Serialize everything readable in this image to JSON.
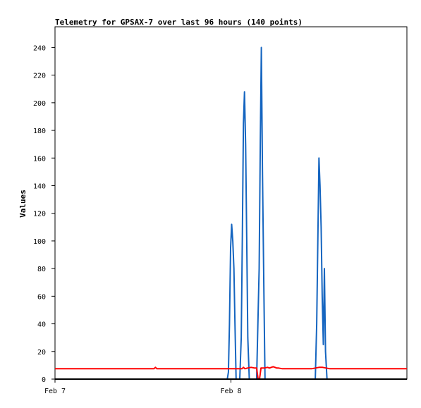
{
  "chart_data": {
    "type": "line",
    "title": "Telemetry for GPSAX-7 over last 96 hours (140 points)",
    "xlabel": "",
    "ylabel": "Values",
    "x_tick_labels": [
      "Feb 7",
      "Feb 8"
    ],
    "y_ticks": [
      0,
      20,
      40,
      60,
      80,
      100,
      120,
      140,
      160,
      180,
      200,
      220,
      240
    ],
    "xlim": [
      0,
      96
    ],
    "ylim": [
      0,
      255
    ],
    "grid": false,
    "legend": "none",
    "series": [
      {
        "color": "#1565c0",
        "x": [
          24.0,
          47.0,
          47.3,
          47.6,
          47.9,
          48.2,
          48.5,
          48.8,
          49.1,
          49.4,
          50.0,
          50.4,
          50.8,
          51.1,
          51.4,
          51.7,
          52.0,
          52.3,
          52.6,
          53.0,
          54.3,
          55.0,
          55.7,
          56.0,
          56.3,
          56.6,
          57.0,
          57.3,
          57.6,
          58.0,
          59.0,
          59.6,
          59.9,
          60.2,
          60.5,
          60.8,
          61.2,
          62.0,
          71.0,
          71.4,
          71.7,
          72.0,
          72.3,
          72.6,
          72.9,
          73.2,
          73.5,
          73.8,
          74.2,
          75.0
        ],
        "values": [
          0,
          0,
          5,
          40,
          95,
          112,
          100,
          80,
          40,
          0,
          0,
          0,
          30,
          100,
          185,
          208,
          170,
          100,
          30,
          0,
          0,
          0,
          80,
          170,
          240,
          150,
          60,
          0,
          0,
          0,
          0,
          0,
          0,
          0,
          0,
          0,
          0,
          0,
          0,
          40,
          100,
          160,
          140,
          110,
          60,
          25,
          80,
          20,
          0,
          0
        ]
      },
      {
        "color": "#ff0000",
        "x": [
          0.0,
          24.0,
          27.0,
          27.4,
          27.8,
          28.2,
          30.0,
          35.0,
          40.0,
          45.0,
          48.0,
          50.0,
          51.0,
          51.4,
          51.8,
          52.5,
          53.5,
          54.5,
          55.0,
          55.4,
          55.8,
          56.2,
          57.0,
          58.0,
          58.5,
          59.0,
          59.5,
          60.0,
          60.5,
          61.0,
          62.0,
          65.0,
          70.0,
          72.0,
          73.0,
          74.0,
          75.0,
          76.0,
          77.0,
          96.0
        ],
        "values": [
          7.5,
          7.5,
          7.5,
          8.5,
          7.5,
          7.5,
          7.5,
          7.5,
          7.5,
          7.5,
          7.5,
          7.5,
          7.5,
          8.5,
          7.5,
          8.0,
          8.5,
          8.0,
          8.0,
          0,
          0,
          8.0,
          8.0,
          8.5,
          8.0,
          8.5,
          9.0,
          8.5,
          8.0,
          8.0,
          7.5,
          7.5,
          7.5,
          8.5,
          8.5,
          8.0,
          7.5,
          7.5,
          7.5,
          7.5
        ]
      },
      {
        "color": "#000000",
        "x": [
          0.0,
          24.0,
          75.0,
          96.0
        ],
        "values": [
          0,
          0,
          0,
          0
        ]
      }
    ]
  }
}
